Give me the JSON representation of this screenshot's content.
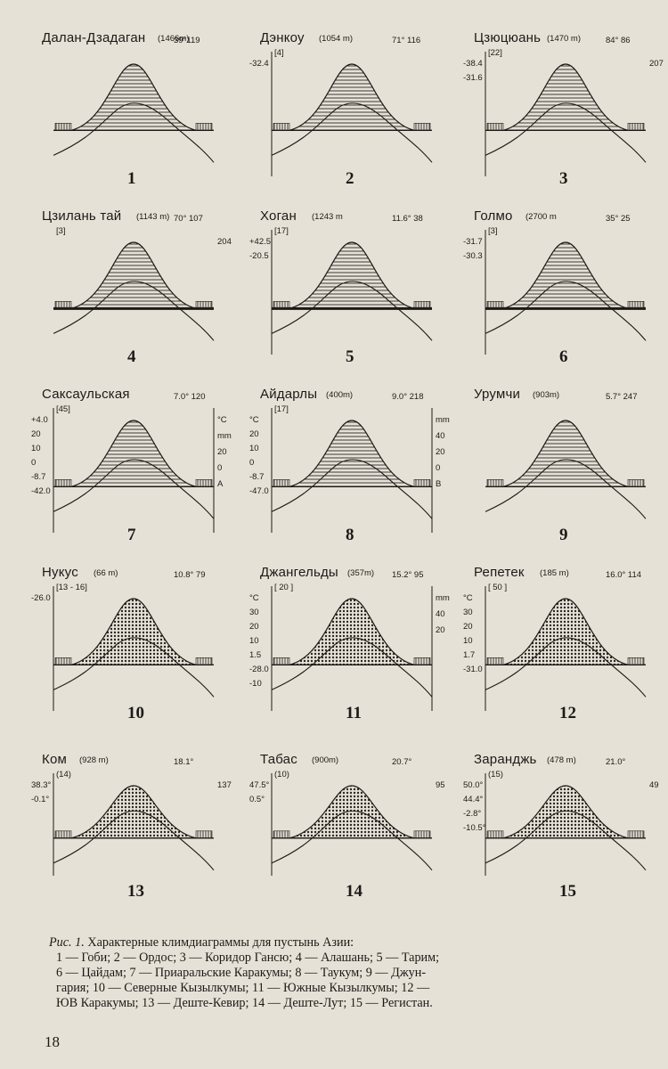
{
  "diagrams": [
    {
      "number": "1",
      "name": "Далан-Дзадаган",
      "alt": "(1466m)",
      "coords": "39°119",
      "bracket": "",
      "scale": [],
      "extra": []
    },
    {
      "number": "2",
      "name": "Дэнкоу",
      "alt": "(1054 m)",
      "coords": "71°   116",
      "bracket": "[4]",
      "scale": [
        "-32.4"
      ],
      "extra": []
    },
    {
      "number": "3",
      "name": "Цзюцюань",
      "alt": "(1470 m)",
      "coords": "84°  86",
      "bracket": "[22]",
      "scale": [
        "-38.4",
        "-31.6"
      ],
      "extra": [
        "207"
      ]
    },
    {
      "number": "4",
      "name": "Цзилань тай",
      "alt": "(1143 m)",
      "coords": "70°  107",
      "bracket": "[3]",
      "scale": [],
      "extra": [
        "204"
      ]
    },
    {
      "number": "5",
      "name": "Хоган",
      "alt": "(1243 m",
      "coords": "11.6°  38",
      "bracket": "[17]",
      "scale": [
        "+42.5",
        "-20.5"
      ],
      "extra": []
    },
    {
      "number": "6",
      "name": "Голмо",
      "alt": "(2700 m",
      "coords": "35°  25",
      "bracket": "[3]",
      "scale": [
        "-31.7",
        "-30.3"
      ],
      "extra": []
    },
    {
      "number": "7",
      "name": "Саксаульская",
      "alt": "",
      "coords": "7.0°  120",
      "bracket": "[45]",
      "scale": [
        "+4.0",
        "20",
        "10",
        "0",
        "-8.7",
        "-42.0"
      ],
      "extra": [
        "°C",
        "mm",
        "20",
        "0",
        "A"
      ]
    },
    {
      "number": "8",
      "name": "Айдарлы",
      "alt": "(400m)",
      "coords": "9.0°  218",
      "bracket": "[17]",
      "scale": [
        "°C",
        "20",
        "10",
        "0",
        "-8.7",
        "-47.0"
      ],
      "extra": [
        "mm",
        "40",
        "20",
        "0",
        "B"
      ]
    },
    {
      "number": "9",
      "name": "Урумчи",
      "alt": "(903m)",
      "coords": "5.7°  247",
      "bracket": "",
      "scale": [],
      "extra": []
    },
    {
      "number": "10",
      "name": "Нукус",
      "alt": "(66 m)",
      "coords": "10.8°  79",
      "bracket": "[13 - 16]",
      "scale": [
        "-26.0"
      ],
      "extra": []
    },
    {
      "number": "11",
      "name": "Джангельды",
      "alt": "(357m)",
      "coords": "15.2°  95",
      "bracket": "[ 20 ]",
      "scale": [
        "°C",
        "30",
        "20",
        "10",
        "1.5",
        "-28.0",
        "-10"
      ],
      "extra": [
        "mm",
        "40",
        "20"
      ]
    },
    {
      "number": "12",
      "name": "Репетек",
      "alt": "(185 m)",
      "coords": "16.0°  114",
      "bracket": "[ 50 ]",
      "scale": [
        "°C",
        "30",
        "20",
        "10",
        "1.7",
        "-31.0"
      ],
      "extra": []
    },
    {
      "number": "13",
      "name": "Ком",
      "alt": "(928 m)",
      "coords": "18.1°",
      "bracket": "(14)",
      "scale": [
        "38.3°",
        "-0.1°"
      ],
      "extra": [
        "137"
      ]
    },
    {
      "number": "14",
      "name": "Табас",
      "alt": "(900m)",
      "coords": "20.7°",
      "bracket": "(10)",
      "scale": [
        "47.5°",
        "0.5°"
      ],
      "extra": [
        "95"
      ]
    },
    {
      "number": "15",
      "name": "Заранджь",
      "alt": "(478 m)",
      "coords": "21.0°",
      "bracket": "(15)",
      "scale": [
        "50.0°",
        "44.4°",
        "-2.8°",
        "-10.5°"
      ],
      "extra": [
        "49"
      ]
    }
  ],
  "caption": {
    "title": "Рис. 1.",
    "title_text": "Характерные климдиаграммы для пустынь Азии:",
    "lines": [
      "1 — Гоби; 2 — Ордос; 3 — Коридор Ганcю; 4 — Алашань; 5 — Тарим;",
      "6 — Цайдам; 7 — Приаральские Каракумы; 8 — Таукум; 9 — Джун-",
      "гария; 10 — Северные Кызылкумы; 11 — Южные Кызылкумы; 12 —",
      "ЮВ Каракумы; 13 — Деште-Кевир; 14 — Деште-Лут; 15 — Регистан."
    ]
  },
  "page_number": "18"
}
